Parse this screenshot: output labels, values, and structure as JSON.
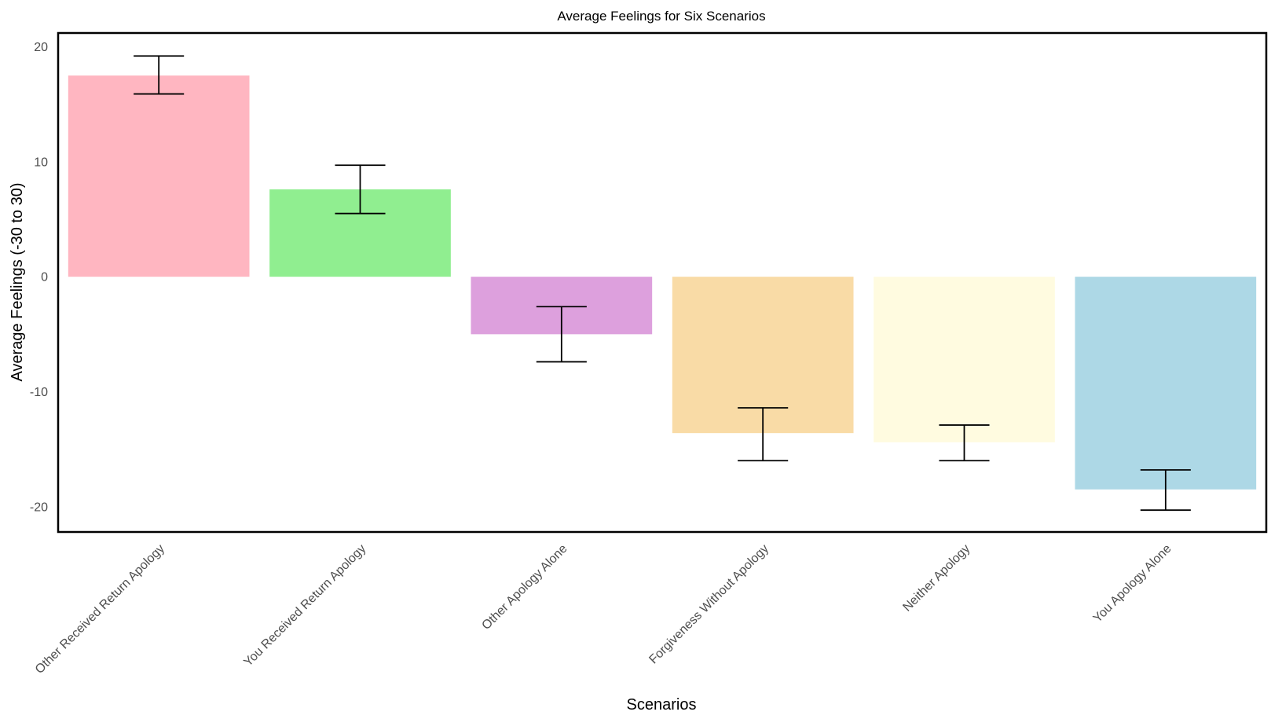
{
  "chart_data": {
    "type": "bar",
    "title": "Average Feelings for Six Scenarios",
    "xlabel": "Scenarios",
    "ylabel": "Average Feelings (-30 to 30)",
    "ylim": [
      -22.2,
      21.2
    ],
    "yticks": [
      20,
      10,
      0,
      -10,
      -20
    ],
    "ytick_labels": [
      "20",
      "10",
      "0",
      "-10",
      "-20"
    ],
    "grid": false,
    "categories": [
      "Other Received Return Apology",
      "You Received Return Apology",
      "Other Apology Alone",
      "Forgiveness Without Apology",
      "Neither Apology",
      "You Apology Alone"
    ],
    "values": [
      17.5,
      7.6,
      -5.0,
      -13.6,
      -14.4,
      -18.5
    ],
    "error_low": [
      15.9,
      5.5,
      -7.4,
      -16.0,
      -16.0,
      -20.3
    ],
    "error_high": [
      19.2,
      9.7,
      -2.6,
      -11.4,
      -12.9,
      -16.8
    ],
    "colors": [
      "#ffb6c1",
      "#90ee90",
      "#dda0dd",
      "#f9dba6",
      "#fffbe0",
      "#add8e6"
    ]
  }
}
